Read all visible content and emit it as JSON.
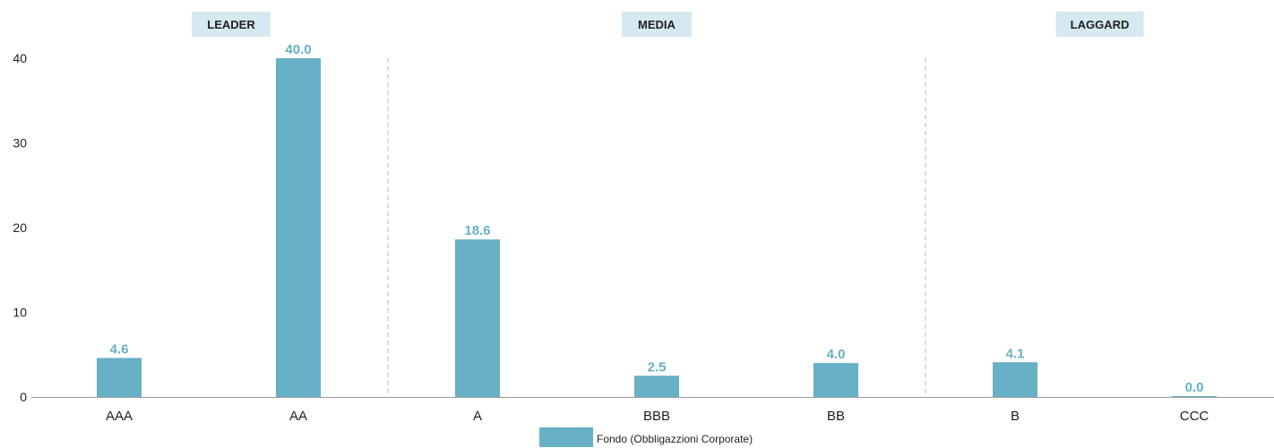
{
  "chart_data": {
    "type": "bar",
    "categories": [
      "AAA",
      "AA",
      "A",
      "BBB",
      "BB",
      "B",
      "CCC"
    ],
    "series": [
      {
        "name": "Fondo (Obbligazzioni Corporate)",
        "values": [
          4.6,
          40.0,
          18.6,
          2.5,
          4.0,
          4.1,
          0.0
        ]
      }
    ],
    "value_labels": [
      "4.6",
      "40.0",
      "18.6",
      "2.5",
      "4.0",
      "4.1",
      "0.0"
    ],
    "ylim": [
      0,
      40
    ],
    "yticks": [
      0,
      10,
      20,
      30,
      40
    ],
    "groups": [
      {
        "label": "LEADER",
        "categories": [
          "AAA",
          "AA"
        ]
      },
      {
        "label": "MEDIA",
        "categories": [
          "A",
          "BBB",
          "BB"
        ]
      },
      {
        "label": "LAGGARD",
        "categories": [
          "B",
          "CCC"
        ]
      }
    ],
    "legend_position": "bottom-center",
    "grid": false
  },
  "colors": {
    "bar": "#67b0c6",
    "value_label": "#67b0c6",
    "group_badge_bg": "#d6e9f0",
    "axis": "#999999",
    "divider": "#bbbbbb",
    "text": "#1f1f1f"
  }
}
